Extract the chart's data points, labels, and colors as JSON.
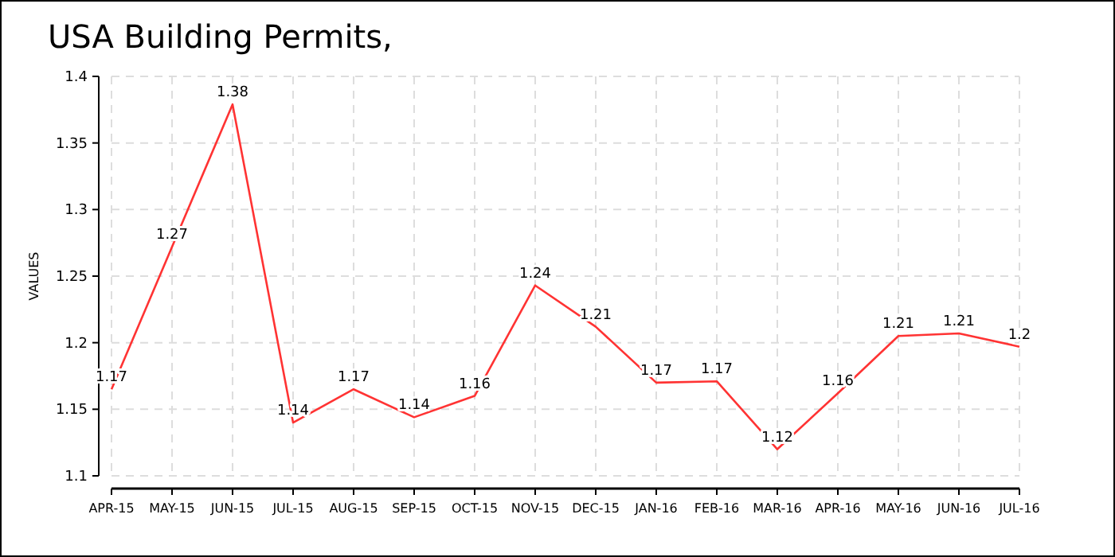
{
  "chart_data": {
    "type": "line",
    "title": "USA Building Permits,",
    "ylabel": "VALUES",
    "categories": [
      "APR-15",
      "MAY-15",
      "JUN-15",
      "JUL-15",
      "AUG-15",
      "SEP-15",
      "OCT-15",
      "NOV-15",
      "DEC-15",
      "JAN-16",
      "FEB-16",
      "MAR-16",
      "APR-16",
      "MAY-16",
      "JUN-16",
      "JUL-16"
    ],
    "series": [
      {
        "color": "#ff3333",
        "values": [
          1.165,
          1.272,
          1.379,
          1.14,
          1.165,
          1.144,
          1.16,
          1.243,
          1.212,
          1.17,
          1.171,
          1.12,
          1.162,
          1.205,
          1.207,
          1.197
        ],
        "value_labels": [
          "1.17",
          "1.27",
          "1.38",
          "1.14",
          "1.17",
          "1.14",
          "1.16",
          "1.24",
          "1.21",
          "1.17",
          "1.17",
          "1.12",
          "1.16",
          "1.21",
          "1.21",
          "1.2"
        ]
      }
    ],
    "ylim": [
      1.1,
      1.4
    ],
    "yticks": [
      1.1,
      1.15,
      1.2,
      1.25,
      1.3,
      1.35,
      1.4
    ],
    "grid": true,
    "marker": "none",
    "line_style": "solid"
  }
}
